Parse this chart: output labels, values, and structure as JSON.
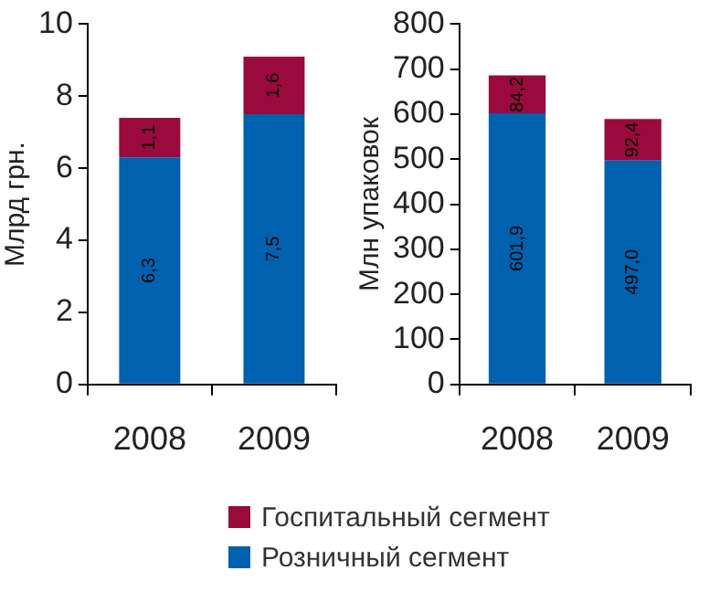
{
  "chart_data": [
    {
      "type": "bar",
      "stacked": true,
      "categories": [
        "2008",
        "2009"
      ],
      "ylabel": "Млрд грн.",
      "ylim": [
        0,
        10
      ],
      "yticks": [
        0,
        2,
        4,
        6,
        8,
        10
      ],
      "legend": "bottom",
      "grid": false,
      "series": [
        {
          "name": "Розничный сегмент",
          "color": "#0061ae",
          "values": [
            6.3,
            7.5
          ],
          "value_labels": [
            "6,3",
            "7,5"
          ]
        },
        {
          "name": "Госпитальный сегмент",
          "color": "#9a0a3c",
          "values": [
            1.1,
            1.6
          ],
          "value_labels": [
            "1,1",
            "1,6"
          ]
        }
      ]
    },
    {
      "type": "bar",
      "stacked": true,
      "categories": [
        "2008",
        "2009"
      ],
      "ylabel": "Млн упаковок",
      "ylim": [
        0,
        800
      ],
      "yticks": [
        0,
        100,
        200,
        300,
        400,
        500,
        600,
        700,
        800
      ],
      "legend": "bottom",
      "grid": false,
      "series": [
        {
          "name": "Розничный сегмент",
          "color": "#0061ae",
          "values": [
            601.9,
            497.0
          ],
          "value_labels": [
            "601,9",
            "497,0"
          ]
        },
        {
          "name": "Госпитальный сегмент",
          "color": "#9a0a3c",
          "values": [
            84.2,
            92.4
          ],
          "value_labels": [
            "84,2",
            "92,4"
          ]
        }
      ]
    }
  ]
}
